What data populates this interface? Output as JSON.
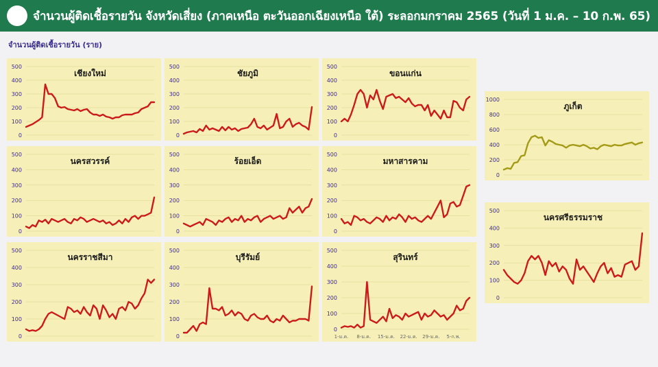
{
  "header": {
    "title": "จำนวนผู้ติดเชื้อรายวัน จังหวัดเสี่ยง (ภาคเหนือ ตะวันออกเฉียงเหนือ ใต้) ระลอกมกราคม 2565 (วันที่ 1 ม.ค. – 10 ก.พ. 65)"
  },
  "subtitle": "จำนวนผู้ติดเชื้อรายวัน (ราย)",
  "colors": {
    "header_bg": "#1f7a4d",
    "panel_bg": "#f6f0b8",
    "line_red": "#cc1a1a",
    "line_olive": "#a39a16",
    "tick_text": "#3d2a8a"
  },
  "chart_data": [
    {
      "type": "line",
      "title": "เชียงใหม่",
      "ylim": [
        0,
        500
      ],
      "yticks": [
        0,
        100,
        200,
        300,
        400,
        500
      ],
      "color": "#cc1a1a",
      "values": [
        60,
        70,
        80,
        95,
        110,
        130,
        370,
        300,
        300,
        270,
        210,
        200,
        205,
        190,
        185,
        180,
        190,
        175,
        185,
        190,
        165,
        150,
        150,
        140,
        150,
        135,
        130,
        120,
        130,
        130,
        145,
        150,
        150,
        150,
        160,
        165,
        190,
        200,
        210,
        240,
        240
      ]
    },
    {
      "type": "line",
      "title": "ชัยภูมิ",
      "ylim": [
        0,
        500
      ],
      "yticks": [
        0,
        100,
        200,
        300,
        400,
        500
      ],
      "color": "#cc1a1a",
      "values": [
        10,
        20,
        25,
        30,
        20,
        45,
        30,
        70,
        40,
        50,
        40,
        30,
        60,
        35,
        60,
        40,
        50,
        30,
        45,
        50,
        55,
        80,
        120,
        60,
        50,
        70,
        40,
        55,
        70,
        155,
        50,
        60,
        100,
        120,
        60,
        80,
        90,
        70,
        60,
        40,
        205
      ]
    },
    {
      "type": "line",
      "title": "ขอนแก่น",
      "ylim": [
        0,
        500
      ],
      "yticks": [
        0,
        100,
        200,
        300,
        400,
        500
      ],
      "color": "#cc1a1a",
      "values": [
        100,
        120,
        100,
        150,
        220,
        300,
        330,
        300,
        200,
        290,
        260,
        330,
        250,
        190,
        280,
        290,
        300,
        270,
        280,
        260,
        240,
        270,
        230,
        210,
        220,
        220,
        180,
        220,
        140,
        180,
        150,
        120,
        180,
        130,
        130,
        250,
        240,
        200,
        180,
        260,
        280
      ]
    },
    {
      "type": "line",
      "title": "ภูเก็ต",
      "ylim": [
        0,
        1000
      ],
      "yticks": [
        0,
        200,
        400,
        600,
        800,
        1000
      ],
      "color": "#a39a16",
      "values": [
        70,
        90,
        80,
        160,
        170,
        250,
        260,
        420,
        500,
        520,
        490,
        500,
        390,
        460,
        440,
        410,
        400,
        390,
        360,
        390,
        400,
        390,
        380,
        400,
        380,
        350,
        360,
        340,
        380,
        400,
        390,
        380,
        400,
        390,
        390,
        410,
        420,
        430,
        400,
        420,
        430
      ]
    },
    {
      "type": "line",
      "title": "นครสวรรค์",
      "ylim": [
        0,
        500
      ],
      "yticks": [
        0,
        100,
        200,
        300,
        400,
        500
      ],
      "color": "#cc1a1a",
      "values": [
        30,
        20,
        40,
        30,
        70,
        60,
        75,
        50,
        80,
        70,
        60,
        70,
        80,
        60,
        50,
        80,
        70,
        90,
        80,
        60,
        70,
        80,
        70,
        60,
        70,
        50,
        60,
        40,
        50,
        70,
        50,
        80,
        60,
        90,
        100,
        80,
        100,
        100,
        110,
        120,
        220
      ]
    },
    {
      "type": "line",
      "title": "ร้อยเอ็ด",
      "ylim": [
        0,
        500
      ],
      "yticks": [
        0,
        100,
        200,
        300,
        400,
        500
      ],
      "color": "#cc1a1a",
      "values": [
        50,
        40,
        30,
        40,
        50,
        60,
        40,
        80,
        70,
        60,
        40,
        70,
        60,
        80,
        90,
        60,
        80,
        70,
        100,
        60,
        80,
        70,
        90,
        100,
        60,
        80,
        90,
        100,
        80,
        90,
        100,
        80,
        90,
        150,
        120,
        140,
        160,
        120,
        150,
        160,
        210
      ]
    },
    {
      "type": "line",
      "title": "มหาสารคาม",
      "ylim": [
        0,
        500
      ],
      "yticks": [
        0,
        100,
        200,
        300,
        400,
        500
      ],
      "color": "#cc1a1a",
      "values": [
        80,
        50,
        60,
        40,
        100,
        90,
        70,
        80,
        60,
        50,
        70,
        90,
        80,
        60,
        100,
        70,
        90,
        80,
        110,
        90,
        60,
        100,
        80,
        90,
        70,
        60,
        80,
        100,
        80,
        120,
        160,
        200,
        90,
        110,
        180,
        190,
        160,
        170,
        230,
        290,
        300
      ]
    },
    {
      "type": "line",
      "title": "นครศรีธรรมราช",
      "ylim": [
        0,
        500
      ],
      "yticks": [
        0,
        100,
        200,
        300,
        400,
        500
      ],
      "color": "#cc1a1a",
      "values": [
        160,
        130,
        110,
        90,
        80,
        100,
        140,
        210,
        240,
        220,
        240,
        200,
        130,
        210,
        180,
        200,
        150,
        180,
        160,
        110,
        80,
        220,
        160,
        180,
        150,
        120,
        90,
        140,
        180,
        200,
        140,
        170,
        120,
        130,
        120,
        190,
        200,
        210,
        160,
        180,
        370
      ]
    },
    {
      "type": "line",
      "title": "นครราชสีมา",
      "ylim": [
        0,
        500
      ],
      "yticks": [
        0,
        100,
        200,
        300,
        400,
        500
      ],
      "color": "#cc1a1a",
      "values": [
        40,
        30,
        35,
        30,
        40,
        60,
        100,
        130,
        140,
        130,
        120,
        110,
        100,
        170,
        160,
        140,
        150,
        130,
        170,
        140,
        120,
        180,
        160,
        100,
        180,
        150,
        110,
        130,
        100,
        160,
        170,
        150,
        200,
        190,
        160,
        180,
        220,
        250,
        330,
        310,
        330
      ]
    },
    {
      "type": "line",
      "title": "บุรีรัมย์",
      "ylim": [
        0,
        500
      ],
      "yticks": [
        0,
        100,
        200,
        300,
        400,
        500
      ],
      "color": "#cc1a1a",
      "values": [
        20,
        20,
        40,
        60,
        30,
        70,
        80,
        70,
        280,
        160,
        160,
        150,
        170,
        120,
        130,
        150,
        120,
        140,
        130,
        100,
        90,
        120,
        130,
        110,
        100,
        100,
        120,
        90,
        80,
        100,
        90,
        120,
        100,
        80,
        90,
        90,
        100,
        100,
        100,
        90,
        290
      ]
    },
    {
      "type": "line",
      "title": "สุรินทร์",
      "ylim": [
        0,
        500
      ],
      "yticks": [
        0,
        100,
        200,
        300,
        400,
        500
      ],
      "color": "#cc1a1a",
      "x_tick_labels": [
        "1-ม.ค.",
        "8-ม.ค.",
        "15-ม.ค.",
        "22-ม.ค.",
        "29-ม.ค.",
        "5-ก.พ."
      ],
      "values": [
        10,
        20,
        15,
        20,
        10,
        30,
        10,
        20,
        300,
        60,
        50,
        40,
        60,
        80,
        50,
        130,
        70,
        90,
        80,
        60,
        100,
        80,
        90,
        100,
        110,
        60,
        100,
        80,
        90,
        120,
        100,
        80,
        90,
        60,
        80,
        100,
        150,
        120,
        130,
        180,
        200
      ]
    }
  ]
}
